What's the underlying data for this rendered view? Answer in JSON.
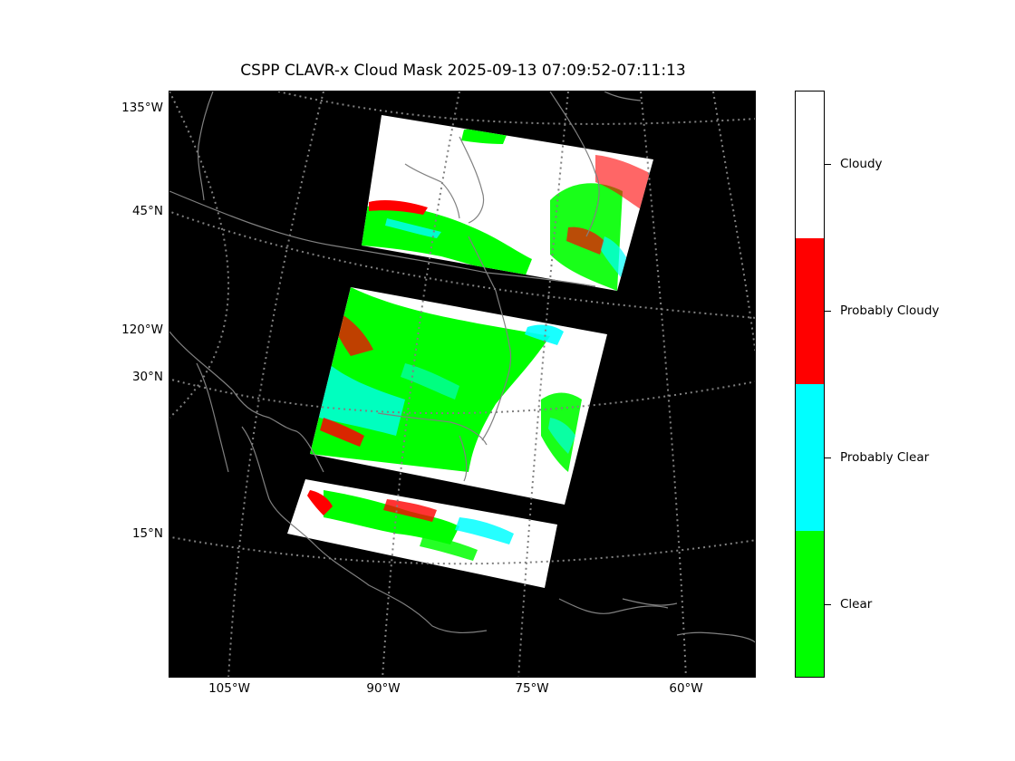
{
  "title": "CSPP CLAVR-x Cloud Mask 2025-09-13 07:09:52-07:11:13",
  "left_labels": [
    "135°W",
    "45°N",
    "120°W",
    "30°N",
    "15°N"
  ],
  "bottom_labels": [
    "105°W",
    "90°W",
    "75°W",
    "60°W"
  ],
  "legend": {
    "categories": [
      {
        "label": "Cloudy",
        "color": "#ffffff"
      },
      {
        "label": "Probably Cloudy",
        "color": "#ff0000"
      },
      {
        "label": "Probably Clear",
        "color": "#00ffff"
      },
      {
        "label": "Clear",
        "color": "#00ff00"
      }
    ]
  },
  "colors": {
    "background": "#000000",
    "gridlines": "#808080",
    "coastlines": "#808080"
  }
}
